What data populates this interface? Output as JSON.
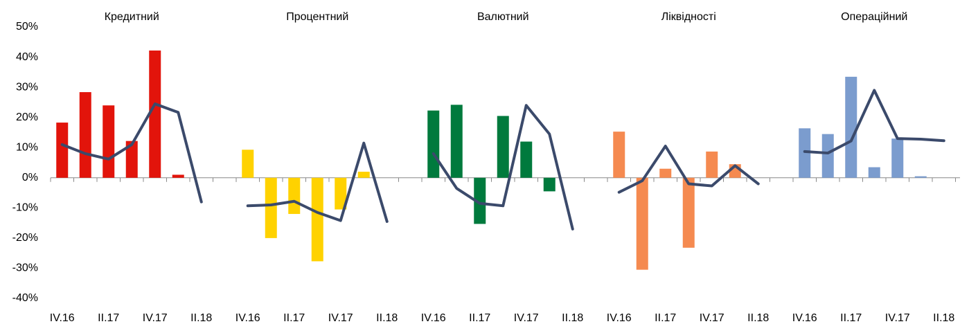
{
  "chart_data": [
    {
      "type": "bar-line",
      "title": "Кредитний",
      "categories": [
        "IV.16",
        null,
        "II.17",
        null,
        "IV.17",
        null,
        "II.18"
      ],
      "series": [
        {
          "type": "bar",
          "color": "#e2140b",
          "values": [
            18.3,
            28.4,
            24.0,
            12.2,
            42.2,
            1.0,
            null
          ]
        },
        {
          "type": "line",
          "color": "#3b4a6b",
          "values": [
            11,
            8,
            6.2,
            11,
            24.5,
            21.7,
            -8
          ]
        }
      ],
      "ylim": [
        -40,
        50
      ],
      "yticks": [
        {
          "value": -40,
          "label": "-40%"
        },
        {
          "value": -30,
          "label": "-30%"
        },
        {
          "value": -20,
          "label": "-20%"
        },
        {
          "value": -10,
          "label": "-10%"
        },
        {
          "value": 0,
          "label": "0%"
        },
        {
          "value": 10,
          "label": "10%"
        },
        {
          "value": 20,
          "label": "20%"
        },
        {
          "value": 30,
          "label": "30%"
        },
        {
          "value": 40,
          "label": "40%"
        },
        {
          "value": 50,
          "label": "50%"
        }
      ]
    },
    {
      "type": "bar-line",
      "title": "Процентний",
      "categories": [
        "IV.16",
        null,
        "II.17",
        null,
        "IV.17",
        null,
        "II.18"
      ],
      "series": [
        {
          "type": "bar",
          "color": "#ffd200",
          "values": [
            9.3,
            -20,
            -12,
            -27.7,
            -10.5,
            2,
            null
          ]
        },
        {
          "type": "line",
          "color": "#3b4a6b",
          "values": [
            -9.3,
            -9,
            -7.8,
            -11.5,
            -14.2,
            11.5,
            -14.5
          ]
        }
      ],
      "ylim": [
        -40,
        50
      ]
    },
    {
      "type": "bar-line",
      "title": "Валютний",
      "categories": [
        "IV.16",
        null,
        "II.17",
        null,
        "IV.17",
        null,
        "II.18"
      ],
      "series": [
        {
          "type": "bar",
          "color": "#007a3d",
          "values": [
            22.3,
            24.2,
            -15.3,
            20.5,
            12,
            -4.5,
            null
          ]
        },
        {
          "type": "line",
          "color": "#3b4a6b",
          "values": [
            8,
            -3.5,
            -8.5,
            -9.3,
            24,
            14.5,
            -17
          ]
        }
      ],
      "ylim": [
        -40,
        50
      ]
    },
    {
      "type": "bar-line",
      "title": "Ліквідності",
      "categories": [
        "IV.16",
        null,
        "II.17",
        null,
        "IV.17",
        null,
        "II.18"
      ],
      "series": [
        {
          "type": "bar",
          "color": "#f58a50",
          "values": [
            15.3,
            -30.5,
            3,
            -23.2,
            8.7,
            4.5,
            null
          ]
        },
        {
          "type": "line",
          "color": "#3b4a6b",
          "values": [
            -4.8,
            -1,
            10.5,
            -2,
            -2.7,
            4,
            -2
          ]
        }
      ],
      "ylim": [
        -40,
        50
      ]
    },
    {
      "type": "bar-line",
      "title": "Операційний",
      "categories": [
        "IV.16",
        null,
        "II.17",
        null,
        "IV.17",
        null,
        "II.18"
      ],
      "series": [
        {
          "type": "bar",
          "color": "#7b9cce",
          "values": [
            16.4,
            14.5,
            33.5,
            3.5,
            13,
            0.5,
            null
          ]
        },
        {
          "type": "line",
          "color": "#3b4a6b",
          "values": [
            8.7,
            8.2,
            12.2,
            29,
            13,
            12.8,
            12.3
          ]
        }
      ],
      "ylim": [
        -40,
        50
      ]
    }
  ]
}
